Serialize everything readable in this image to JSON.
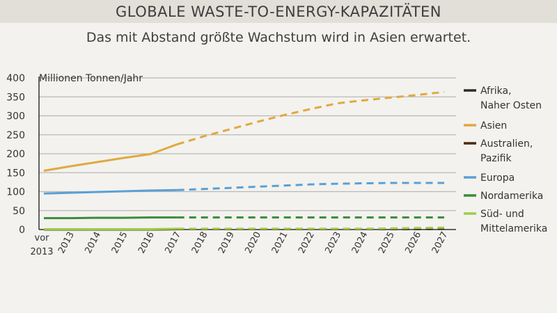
{
  "header": {
    "title": "GLOBALE WASTE-TO-ENERGY-KAPAZITÄTEN",
    "subtitle": "Das mit Abstand größte Wachstum wird in Asien erwartet."
  },
  "chart_data": {
    "type": "line",
    "title": "GLOBALE WASTE-TO-ENERGY-KAPAZITÄTEN",
    "subtitle": "Das mit Abstand größte Wachstum wird in Asien erwartet.",
    "ylabel": "Millionen Tonnen/Jahr",
    "xlabel": "",
    "ylim": [
      0,
      400
    ],
    "yticks": [
      0,
      50,
      100,
      150,
      200,
      250,
      300,
      350,
      400
    ],
    "grid": "horizontal",
    "legend": "right",
    "categories": [
      "vor 2013",
      "2013",
      "2014",
      "2015",
      "2016",
      "2017",
      "2018",
      "2019",
      "2020",
      "2021",
      "2022",
      "2023",
      "2024",
      "2025",
      "2026",
      "2027"
    ],
    "actual_until": "2017",
    "forecast_style": "dashed",
    "series": [
      {
        "name": "Afrika,\nNaher Osten",
        "color": "#2b2b2b",
        "values": [
          0,
          0,
          0,
          0,
          0,
          1,
          1,
          1,
          1,
          1,
          1,
          1,
          1,
          1,
          1,
          2
        ]
      },
      {
        "name": "Asien",
        "color": "#e0a93f",
        "values": [
          155,
          167,
          178,
          189,
          199,
          225,
          246,
          265,
          284,
          302,
          318,
          333,
          341,
          348,
          355,
          363
        ]
      },
      {
        "name": "Australien,\nPazifik",
        "color": "#4a2a12",
        "values": [
          0,
          0,
          0,
          0,
          0,
          1,
          1,
          1,
          1,
          1,
          1,
          1,
          1,
          2,
          3,
          4
        ]
      },
      {
        "name": "Europa",
        "color": "#5aa0d6",
        "values": [
          95,
          97,
          99,
          101,
          103,
          104,
          107,
          110,
          113,
          116,
          119,
          121,
          122,
          123,
          123,
          123
        ]
      },
      {
        "name": "Nordamerika",
        "color": "#3b8a3b",
        "values": [
          30,
          30,
          31,
          31,
          32,
          32,
          32,
          32,
          32,
          32,
          32,
          32,
          32,
          32,
          32,
          32
        ]
      },
      {
        "name": "Süd- und\nMittelamerika",
        "color": "#9ccc4a",
        "values": [
          1,
          1,
          1,
          1,
          1,
          2,
          2,
          2,
          2,
          2,
          2,
          2,
          2,
          3,
          4,
          5
        ]
      }
    ]
  }
}
